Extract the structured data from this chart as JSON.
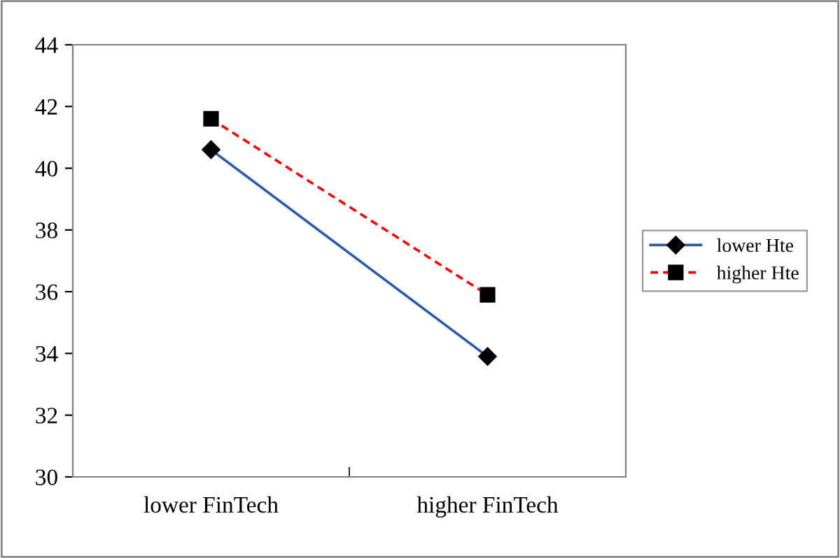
{
  "chart_data": {
    "type": "line",
    "categories": [
      "lower FinTech",
      "higher FinTech"
    ],
    "series": [
      {
        "name": "lower Hte",
        "color": "#2a5caa",
        "values": [
          40.6,
          33.9
        ],
        "marker": "diamond",
        "line_style": "solid"
      },
      {
        "name": "higher Hte",
        "color": "#ff0000",
        "values": [
          41.6,
          35.9
        ],
        "marker": "square",
        "line_style": "dashed"
      }
    ],
    "ylim": [
      30,
      44
    ],
    "yticks": [
      30,
      32,
      34,
      36,
      38,
      40,
      42,
      44
    ],
    "grid": false,
    "legend": "right"
  }
}
